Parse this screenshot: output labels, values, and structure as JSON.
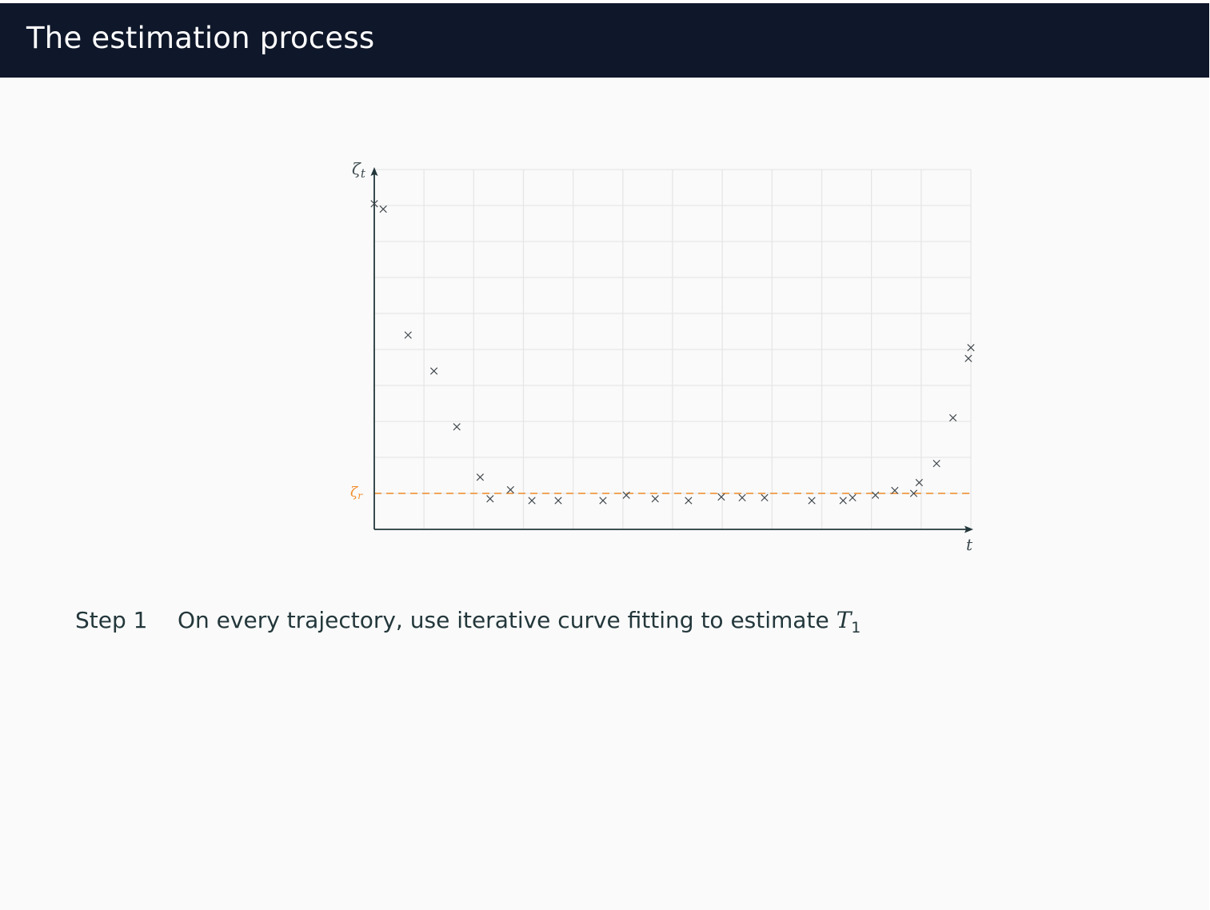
{
  "frame": {
    "title": "The estimation process"
  },
  "chart_data": {
    "type": "scatter",
    "title": "",
    "xlabel": "t",
    "ylabel": "ζt",
    "grid": true,
    "xlim": [
      0,
      12
    ],
    "ylim": [
      0,
      10
    ],
    "reference_line": {
      "label": "ζr",
      "y": 1,
      "style": "dashed",
      "color": "#f08c28"
    },
    "series": [
      {
        "marker": "x",
        "x": [
          0.0,
          0.18,
          0.68,
          1.2,
          1.66,
          2.13,
          2.33,
          2.74,
          3.17,
          3.7,
          4.6,
          5.07,
          5.65,
          6.32,
          6.98,
          7.4,
          7.85,
          8.8,
          9.43,
          9.62,
          10.08,
          10.47,
          10.85,
          10.96,
          11.31,
          11.64,
          11.95,
          12.0
        ],
        "y": [
          9.05,
          8.9,
          5.4,
          4.4,
          2.85,
          1.45,
          0.85,
          1.1,
          0.8,
          0.8,
          0.8,
          0.95,
          0.85,
          0.8,
          0.9,
          0.88,
          0.88,
          0.8,
          0.8,
          0.88,
          0.95,
          1.08,
          1.0,
          1.3,
          1.83,
          3.1,
          4.75,
          5.05
        ]
      }
    ]
  },
  "step": {
    "label": "Step 1",
    "text": "On every trajectory, use iterative curve fitting to estimate ",
    "symbol": "T",
    "symbol_sub": "1"
  }
}
